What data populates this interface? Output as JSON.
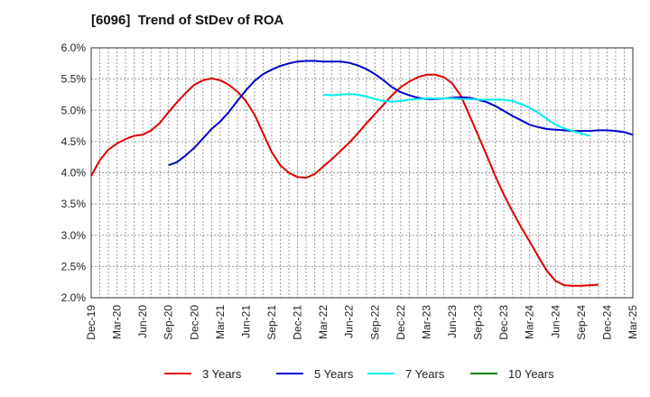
{
  "chart_data": {
    "type": "line",
    "title": "[6096]  Trend of StDev of ROA",
    "xlabel": "",
    "ylabel": "",
    "x_ticks": [
      "Dec-19",
      "Mar-20",
      "Jun-20",
      "Sep-20",
      "Dec-20",
      "Mar-21",
      "Jun-21",
      "Sep-21",
      "Dec-21",
      "Mar-22",
      "Jun-22",
      "Sep-22",
      "Dec-22",
      "Mar-23",
      "Jun-23",
      "Sep-23",
      "Dec-23",
      "Mar-24",
      "Jun-24",
      "Sep-24",
      "Dec-24",
      "Mar-25"
    ],
    "y_ticks": [
      "6.0%",
      "5.5%",
      "5.0%",
      "4.5%",
      "4.0%",
      "3.5%",
      "3.0%",
      "2.5%",
      "2.0%"
    ],
    "ylim": [
      2.0,
      6.0
    ],
    "grid": true,
    "legend_position": "bottom",
    "series": [
      {
        "name": "3 Years",
        "color": "#dd0000",
        "start_index": 0,
        "values": [
          3.95,
          4.2,
          4.37,
          4.47,
          4.54,
          4.59,
          4.61,
          4.68,
          4.8,
          4.97,
          5.13,
          5.28,
          5.41,
          5.48,
          5.51,
          5.48,
          5.41,
          5.3,
          5.15,
          4.93,
          4.63,
          4.33,
          4.12,
          4.0,
          3.93,
          3.92,
          3.98,
          4.1,
          4.22,
          4.35,
          4.48,
          4.63,
          4.79,
          4.94,
          5.09,
          5.24,
          5.37,
          5.46,
          5.53,
          5.57,
          5.57,
          5.53,
          5.43,
          5.23,
          4.92,
          4.6,
          4.28,
          3.95,
          3.65,
          3.38,
          3.13,
          2.9,
          2.66,
          2.43,
          2.27,
          2.2,
          2.19,
          2.19,
          2.2,
          2.21
        ]
      },
      {
        "name": "5 Years",
        "color": "#0000cc",
        "start_index": 9,
        "values": [
          4.12,
          4.17,
          4.28,
          4.4,
          4.55,
          4.7,
          4.82,
          4.97,
          5.15,
          5.32,
          5.47,
          5.58,
          5.65,
          5.71,
          5.75,
          5.78,
          5.79,
          5.79,
          5.78,
          5.78,
          5.78,
          5.76,
          5.72,
          5.66,
          5.58,
          5.48,
          5.37,
          5.29,
          5.24,
          5.2,
          5.18,
          5.18,
          5.19,
          5.2,
          5.21,
          5.2,
          5.17,
          5.13,
          5.07,
          4.99,
          4.91,
          4.84,
          4.77,
          4.73,
          4.7,
          4.69,
          4.68,
          4.67,
          4.67,
          4.67,
          4.68,
          4.68,
          4.67,
          4.65,
          4.61
        ]
      },
      {
        "name": "7 Years",
        "color": "#00eeee",
        "start_index": 27,
        "values": [
          5.25,
          5.24,
          5.25,
          5.26,
          5.25,
          5.22,
          5.18,
          5.15,
          5.14,
          5.15,
          5.17,
          5.18,
          5.19,
          5.19,
          5.19,
          5.19,
          5.18,
          5.18,
          5.17,
          5.17,
          5.17,
          5.17,
          5.15,
          5.1,
          5.04,
          4.96,
          4.86,
          4.77,
          4.71,
          4.67,
          4.63,
          4.59
        ]
      },
      {
        "name": "10 Years",
        "color": "#008000",
        "start_index": 0,
        "values": []
      }
    ]
  }
}
